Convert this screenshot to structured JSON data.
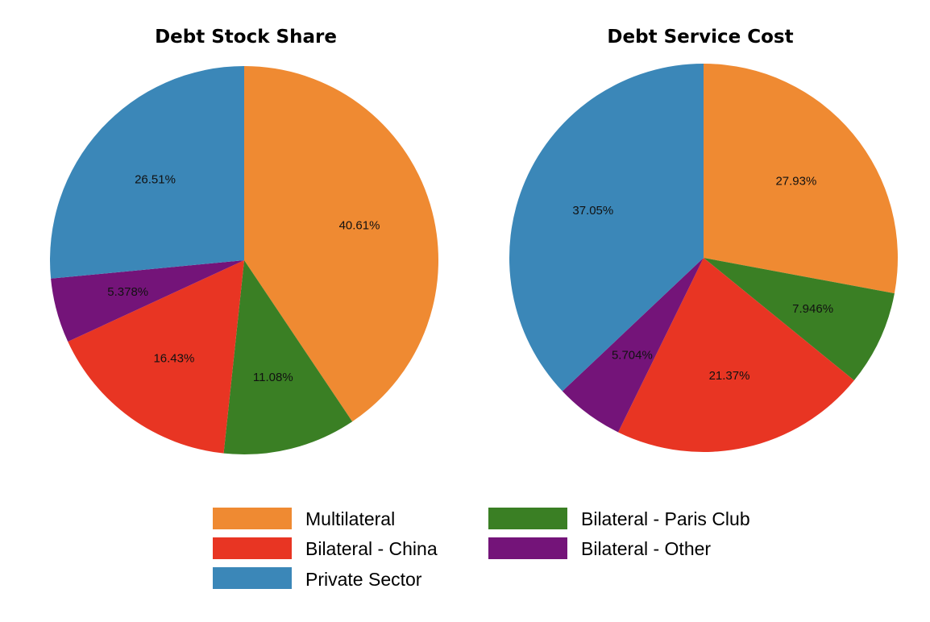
{
  "chart_data": [
    {
      "type": "pie",
      "title": "Debt Stock Share",
      "categories": [
        "Multilateral",
        "Bilateral - Paris Club",
        "Bilateral - China",
        "Bilateral - Other",
        "Private Sector"
      ],
      "values": [
        40.61,
        11.08,
        16.43,
        5.378,
        26.51
      ],
      "labels": [
        "40.61%",
        "11.08%",
        "16.43%",
        "5.378%",
        "26.51%"
      ],
      "start": "12 o'clock",
      "direction": "clockwise"
    },
    {
      "type": "pie",
      "title": "Debt Service Cost",
      "categories": [
        "Multilateral",
        "Bilateral - Paris Club",
        "Bilateral - China",
        "Bilateral - Other",
        "Private Sector"
      ],
      "values": [
        27.93,
        7.946,
        21.37,
        5.704,
        37.05
      ],
      "labels": [
        "27.93%",
        "7.946%",
        "21.37%",
        "5.704%",
        "37.05%"
      ],
      "start": "12 o'clock",
      "direction": "clockwise"
    }
  ],
  "colors": {
    "Multilateral": "#ef8a32",
    "Bilateral - China": "#e83523",
    "Private Sector": "#3b87b8",
    "Bilateral - Paris Club": "#3a7f24",
    "Bilateral - Other": "#741479"
  },
  "legend": {
    "placement": "bottom-center",
    "items": [
      {
        "label": "Multilateral",
        "color": "#ef8a32"
      },
      {
        "label": "Bilateral - Paris Club",
        "color": "#3a7f24"
      },
      {
        "label": "Bilateral - China",
        "color": "#e83523"
      },
      {
        "label": "Bilateral - Other",
        "color": "#741479"
      },
      {
        "label": "Private Sector",
        "color": "#3b87b8"
      }
    ]
  }
}
